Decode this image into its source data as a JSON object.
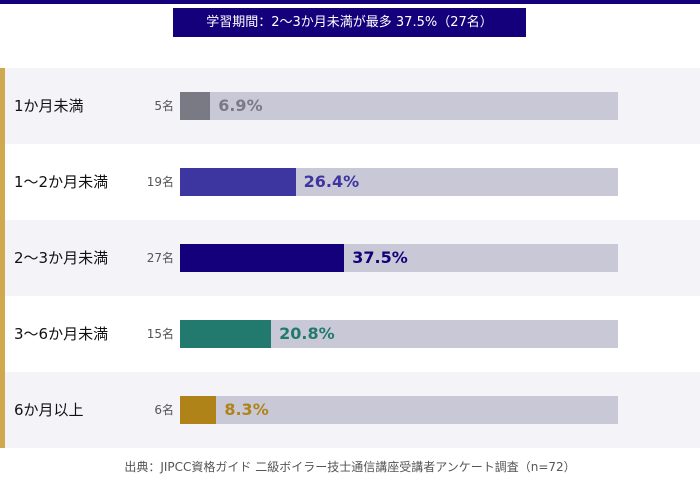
{
  "chart_data": {
    "type": "bar",
    "orientation": "horizontal",
    "title": "学習期間：2〜3か月未満が最多 37.5%（27名）",
    "categories": [
      "1か月未満",
      "1〜2か月未満",
      "2〜3か月未満",
      "3〜6か月未満",
      "6か月以上"
    ],
    "values": [
      6.9,
      26.4,
      37.5,
      20.8,
      8.3
    ],
    "value_labels": [
      "6.9%",
      "26.4%",
      "37.5%",
      "20.8%",
      "8.3%"
    ],
    "counts": [
      "5名",
      "19名",
      "27名",
      "15名",
      "6名"
    ],
    "colors": [
      "#7a7a85",
      "#3d35a0",
      "#14007a",
      "#227a6e",
      "#b08318"
    ],
    "xlim": [
      0,
      100
    ],
    "unit": "%",
    "source": "出典：JIPCC資格ガイド 二級ボイラー技士通信講座受講者アンケート調査（n=72）"
  }
}
